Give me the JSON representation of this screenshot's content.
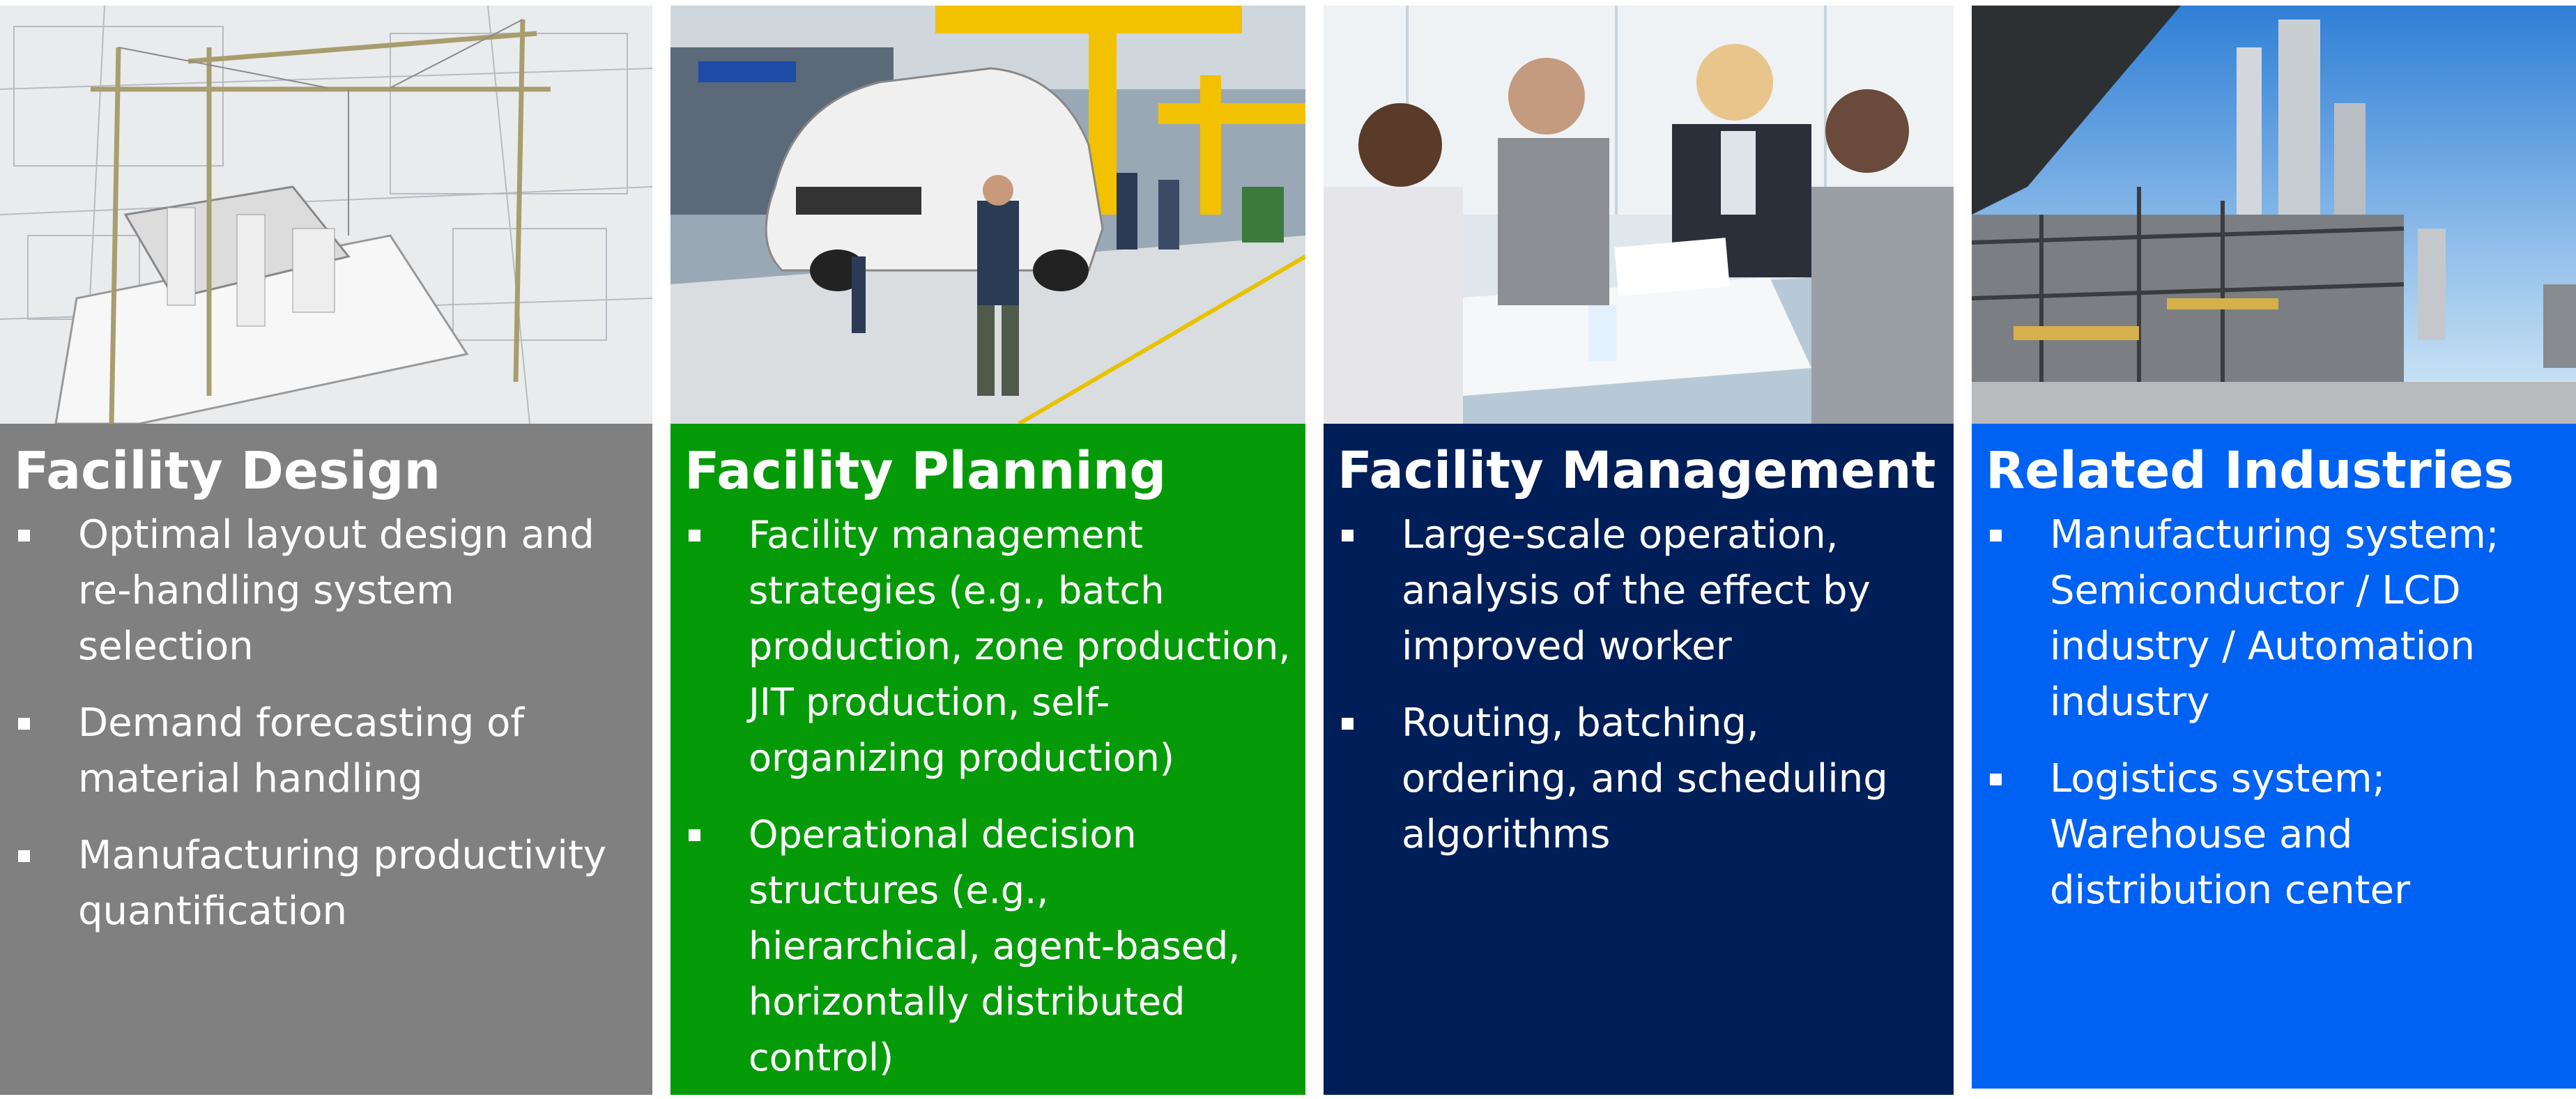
{
  "colors": {
    "design": "#808080",
    "planning": "#059B08",
    "management": "#001E58",
    "industries": "#0062F2"
  },
  "columns": [
    {
      "title": "Facility Design",
      "photo_icon": "blueprint-cranes-image",
      "bullets": [
        "Optimal layout design and re-handling system selection",
        "Demand forecasting of material handling",
        "Manufacturing productivity quantification"
      ]
    },
    {
      "title": "Facility Planning",
      "photo_icon": "car-assembly-line-image",
      "bullets": [
        "Facility management strategies (e.g., batch production, zone production, JIT production, self-organizing production)",
        "Operational decision structures (e.g., hierarchical, agent-based, horizontally distributed control)"
      ]
    },
    {
      "title": "Facility Management",
      "photo_icon": "business-meeting-image",
      "bullets": [
        "Large-scale operation, analysis of the effect by improved worker",
        "Routing, batching, ordering, and scheduling algorithms"
      ]
    },
    {
      "title": "Related Industries",
      "photo_icon": "refinery-plant-image",
      "bullets": [
        "Manufacturing system; Semiconductor / LCD industry / Automation industry",
        "Logistics system; Warehouse and distribution center"
      ]
    }
  ]
}
